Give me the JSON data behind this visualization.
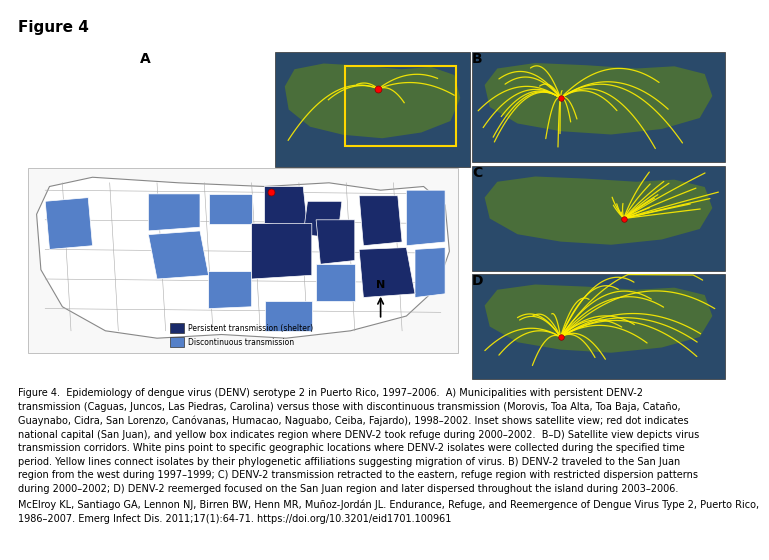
{
  "title": "Figure 4",
  "title_fontsize": 11,
  "title_fontweight": "bold",
  "background_color": "#ffffff",
  "caption_text": "Figure 4.  Epidemiology of dengue virus (DENV) serotype 2 in Puerto Rico, 1997–2006.  A) Municipalities with persistent DENV-2\ntransmission (Caguas, Juncos, Las Piedras, Carolina) versus those with discontinuous transmission (Morovis, Toa Alta, Toa Baja, Cataño,\nGuaynabo, Cidra, San Lorenzo, Canóvanas, Humacao, Naguabo, Ceiba, Fajardo), 1998–2002. Inset shows satellite view; red dot indicates\nnational capital (San Juan), and yellow box indicates region where DENV-2 took refuge during 2000–2002.  B–D) Satellite view depicts virus\ntransmission corridors. White pins point to specific geographic locations where DENV-2 isolates were collected during the specified time\nperiod. Yellow lines connect isolates by their phylogenetic affiliations suggesting migration of virus. B) DENV-2 traveled to the San Juan\nregion from the west during 1997–1999; C) DENV-2 transmission retracted to the eastern, refuge region with restricted dispersion patterns\nduring 2000–2002; D) DENV-2 reemerged focused on the San Juan region and later dispersed throughout the island during 2003–2006.",
  "ref_text": "McElroy KL, Santiago GA, Lennon NJ, Birren BW, Henn MR, Muñoz-Jordán JL. Endurance, Refuge, and Reemergence of Dengue Virus Type 2, Puerto Rico,\n1986–2007. Emerg Infect Dis. 2011;17(1):64-71. https://doi.org/10.3201/eid1701.100961",
  "caption_fontsize": 7.0,
  "ref_fontsize": 7.0,
  "sat_color": "#2a4a6a",
  "land_color": "#4a6e3a",
  "map_bg": "#ffffff",
  "map_border": "#888888",
  "dark_blue": "#1a2a6a",
  "light_blue": "#5580c8",
  "legend_dark": "Persistent transmission (shelter)",
  "legend_light": "Discontinuous transmission"
}
